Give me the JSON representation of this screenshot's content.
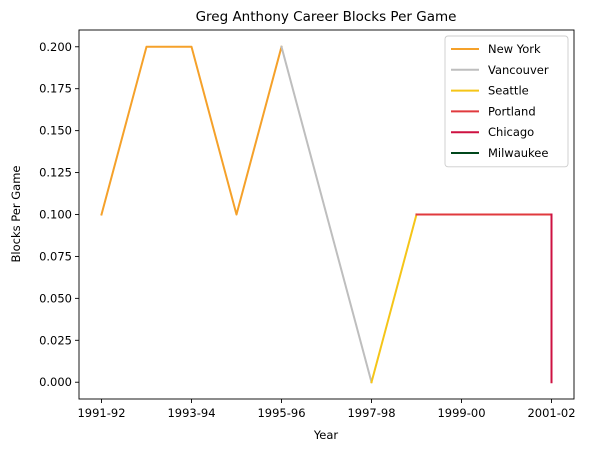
{
  "chart_data": {
    "type": "line",
    "title": "Greg Anthony Career Blocks Per Game",
    "xlabel": "Year",
    "ylabel": "Blocks Per Game",
    "x_categories": [
      "1991-92",
      "1992-93",
      "1993-94",
      "1994-95",
      "1995-96",
      "1996-97",
      "1997-98",
      "1998-99",
      "1999-00",
      "2000-01",
      "2001-02"
    ],
    "x_tick_labels": [
      "1991-92",
      "1993-94",
      "1995-96",
      "1997-98",
      "1999-00",
      "2001-02"
    ],
    "y_ticks": [
      "0.000",
      "0.025",
      "0.050",
      "0.075",
      "0.100",
      "0.125",
      "0.150",
      "0.175",
      "0.200"
    ],
    "ylim": [
      -0.01,
      0.21
    ],
    "xlim": [
      -0.5,
      10.5
    ],
    "legend_position": "upper-right",
    "grid": false,
    "series": [
      {
        "name": "New York",
        "color": "#f5a12a",
        "points": [
          [
            "1991-92",
            0.1
          ],
          [
            "1992-93",
            0.2
          ],
          [
            "1993-94",
            0.2
          ],
          [
            "1994-95",
            0.1
          ],
          [
            "1995-96",
            0.2
          ]
        ]
      },
      {
        "name": "Vancouver",
        "color": "#bebebe",
        "points": [
          [
            "1995-96",
            0.2
          ],
          [
            "1996-97",
            0.1
          ],
          [
            "1997-98",
            0.0
          ]
        ]
      },
      {
        "name": "Seattle",
        "color": "#f5c518",
        "points": [
          [
            "1997-98",
            0.0
          ],
          [
            "1998-99",
            0.1
          ]
        ]
      },
      {
        "name": "Portland",
        "color": "#e03a3e",
        "points": [
          [
            "1998-99",
            0.1
          ],
          [
            "1999-00",
            0.1
          ],
          [
            "2000-01",
            0.1
          ],
          [
            "2001-02",
            0.1
          ]
        ]
      },
      {
        "name": "Chicago",
        "color": "#ce1141",
        "points": [
          [
            "2001-02",
            0.1
          ],
          [
            "2001-02",
            0.0
          ]
        ]
      },
      {
        "name": "Milwaukee",
        "color": "#00471b",
        "points": []
      }
    ]
  }
}
